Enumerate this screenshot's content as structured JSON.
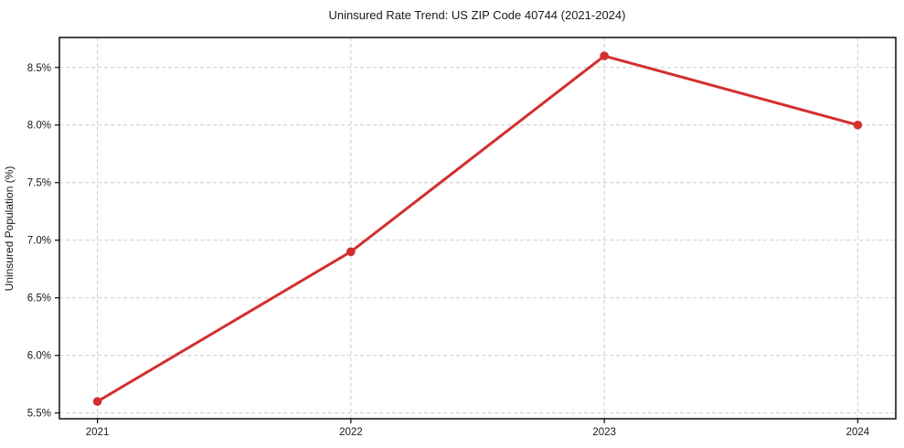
{
  "chart_data": {
    "type": "line",
    "title": "Uninsured Rate Trend: US ZIP Code 40744 (2021-2024)",
    "xlabel": "",
    "ylabel": "Uninsured Population (%)",
    "categories": [
      "2021",
      "2022",
      "2023",
      "2024"
    ],
    "values": [
      5.6,
      6.9,
      8.6,
      8.0
    ],
    "yticks": [
      5.5,
      6.0,
      6.5,
      7.0,
      7.5,
      8.0,
      8.5
    ],
    "ytick_labels": [
      "5.5%",
      "6.0%",
      "6.5%",
      "7.0%",
      "7.5%",
      "8.0%",
      "8.5%"
    ],
    "ylim": [
      5.45,
      8.76
    ],
    "grid": true,
    "grid_style": "dashed",
    "legend": "none",
    "marker": "circle",
    "colors": {
      "line": "#d32f2f",
      "marker": "#d32f2f",
      "grid": "#cccccc",
      "spine": "#1a1a1a",
      "text": "#1a1a1a",
      "background": "#ffffff"
    }
  }
}
